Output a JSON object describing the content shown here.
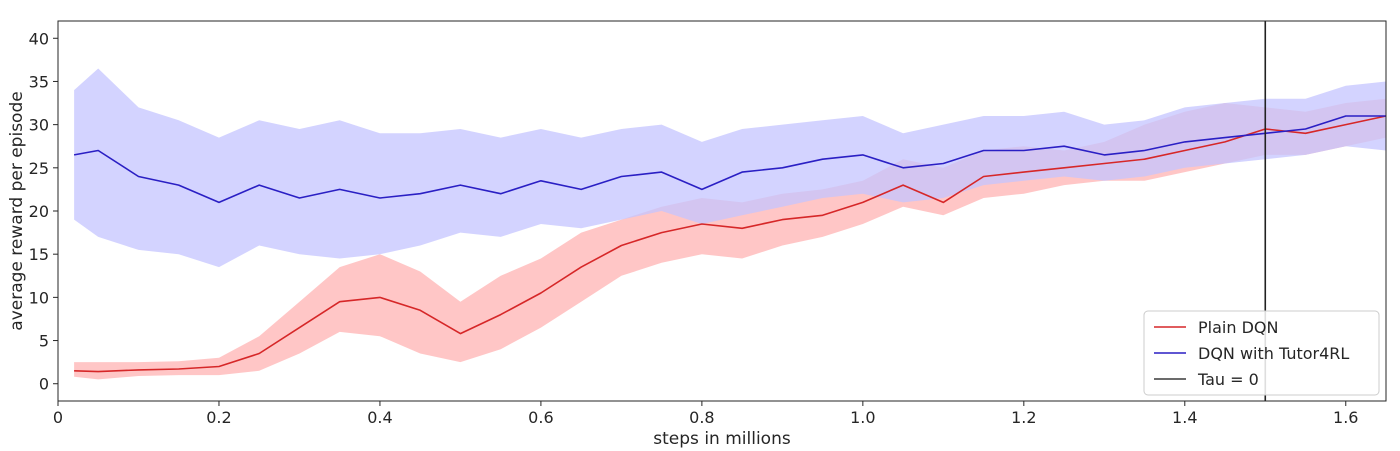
{
  "chart_data": {
    "type": "line",
    "title": "",
    "xlabel": "steps in millions",
    "ylabel": "average reward per episode",
    "xlim": [
      0,
      1.65
    ],
    "ylim": [
      -2,
      42
    ],
    "x_ticks": [
      "0",
      "0.2",
      "0.4",
      "0.6",
      "0.8",
      "1.0",
      "1.2",
      "1.4",
      "1.6"
    ],
    "y_ticks": [
      "0",
      "5",
      "10",
      "15",
      "20",
      "25",
      "30",
      "35",
      "40"
    ],
    "x_tick_values": [
      0,
      0.2,
      0.4,
      0.6,
      0.8,
      1.0,
      1.2,
      1.4,
      1.6
    ],
    "y_tick_values": [
      0,
      5,
      10,
      15,
      20,
      25,
      30,
      35,
      40
    ],
    "grid": false,
    "legend_position": "bottom-right",
    "vline_x": 1.5,
    "series": [
      {
        "name": "Plain DQN",
        "color": "#d62728",
        "band_color": "#ffb3b3",
        "x": [
          0.02,
          0.05,
          0.1,
          0.15,
          0.2,
          0.25,
          0.3,
          0.35,
          0.4,
          0.45,
          0.5,
          0.55,
          0.6,
          0.65,
          0.7,
          0.75,
          0.8,
          0.85,
          0.9,
          0.95,
          1.0,
          1.05,
          1.1,
          1.15,
          1.2,
          1.25,
          1.3,
          1.35,
          1.4,
          1.45,
          1.5,
          1.55,
          1.6,
          1.65
        ],
        "y": [
          1.5,
          1.4,
          1.6,
          1.7,
          2.0,
          3.5,
          6.5,
          9.5,
          10.0,
          8.5,
          5.8,
          8.0,
          10.5,
          13.5,
          16.0,
          17.5,
          18.5,
          18.0,
          19.0,
          19.5,
          21.0,
          23.0,
          21.0,
          24.0,
          24.5,
          25.0,
          25.5,
          26.0,
          27.0,
          28.0,
          29.5,
          29.0,
          30.0,
          31.0
        ],
        "lower": [
          0.8,
          0.5,
          0.9,
          1.0,
          1.0,
          1.5,
          3.5,
          6.0,
          5.5,
          3.5,
          2.5,
          4.0,
          6.5,
          9.5,
          12.5,
          14.0,
          15.0,
          14.5,
          16.0,
          17.0,
          18.5,
          20.5,
          19.5,
          21.5,
          22.0,
          23.0,
          23.5,
          23.5,
          24.5,
          25.5,
          26.5,
          26.5,
          27.5,
          28.5
        ],
        "upper": [
          2.5,
          2.5,
          2.5,
          2.6,
          3.0,
          5.5,
          9.5,
          13.5,
          15.0,
          13.0,
          9.5,
          12.5,
          14.5,
          17.5,
          19.0,
          20.5,
          21.5,
          21.0,
          22.0,
          22.5,
          23.5,
          26.0,
          25.0,
          27.0,
          27.5,
          27.0,
          28.0,
          30.0,
          31.5,
          32.5,
          32.0,
          31.5,
          32.5,
          33.0
        ]
      },
      {
        "name": "DQN with Tutor4RL",
        "color": "#2a1fc4",
        "band_color": "#c4c4ff",
        "x": [
          0.02,
          0.05,
          0.1,
          0.15,
          0.2,
          0.25,
          0.3,
          0.35,
          0.4,
          0.45,
          0.5,
          0.55,
          0.6,
          0.65,
          0.7,
          0.75,
          0.8,
          0.85,
          0.9,
          0.95,
          1.0,
          1.05,
          1.1,
          1.15,
          1.2,
          1.25,
          1.3,
          1.35,
          1.4,
          1.45,
          1.5,
          1.55,
          1.6,
          1.65
        ],
        "y": [
          26.5,
          27.0,
          24.0,
          23.0,
          21.0,
          23.0,
          21.5,
          22.5,
          21.5,
          22.0,
          23.0,
          22.0,
          23.5,
          22.5,
          24.0,
          24.5,
          22.5,
          24.5,
          25.0,
          26.0,
          26.5,
          25.0,
          25.5,
          27.0,
          27.0,
          27.5,
          26.5,
          27.0,
          28.0,
          28.5,
          29.0,
          29.5,
          31.0,
          31.0
        ],
        "lower": [
          19.0,
          17.0,
          15.5,
          15.0,
          13.5,
          16.0,
          15.0,
          14.5,
          15.0,
          16.0,
          17.5,
          17.0,
          18.5,
          18.0,
          19.0,
          20.0,
          18.5,
          19.5,
          20.5,
          21.5,
          22.0,
          21.0,
          21.5,
          23.0,
          23.5,
          24.0,
          23.5,
          24.0,
          25.0,
          25.5,
          26.0,
          26.5,
          27.5,
          27.0
        ],
        "upper": [
          34.0,
          36.5,
          32.0,
          30.5,
          28.5,
          30.5,
          29.5,
          30.5,
          29.0,
          29.0,
          29.5,
          28.5,
          29.5,
          28.5,
          29.5,
          30.0,
          28.0,
          29.5,
          30.0,
          30.5,
          31.0,
          29.0,
          30.0,
          31.0,
          31.0,
          31.5,
          30.0,
          30.5,
          32.0,
          32.5,
          33.0,
          33.0,
          34.5,
          35.0
        ]
      },
      {
        "name": "Tau = 0",
        "color": "#3a3a3a",
        "band_color": "",
        "x": [],
        "y": [],
        "lower": [],
        "upper": []
      }
    ]
  }
}
